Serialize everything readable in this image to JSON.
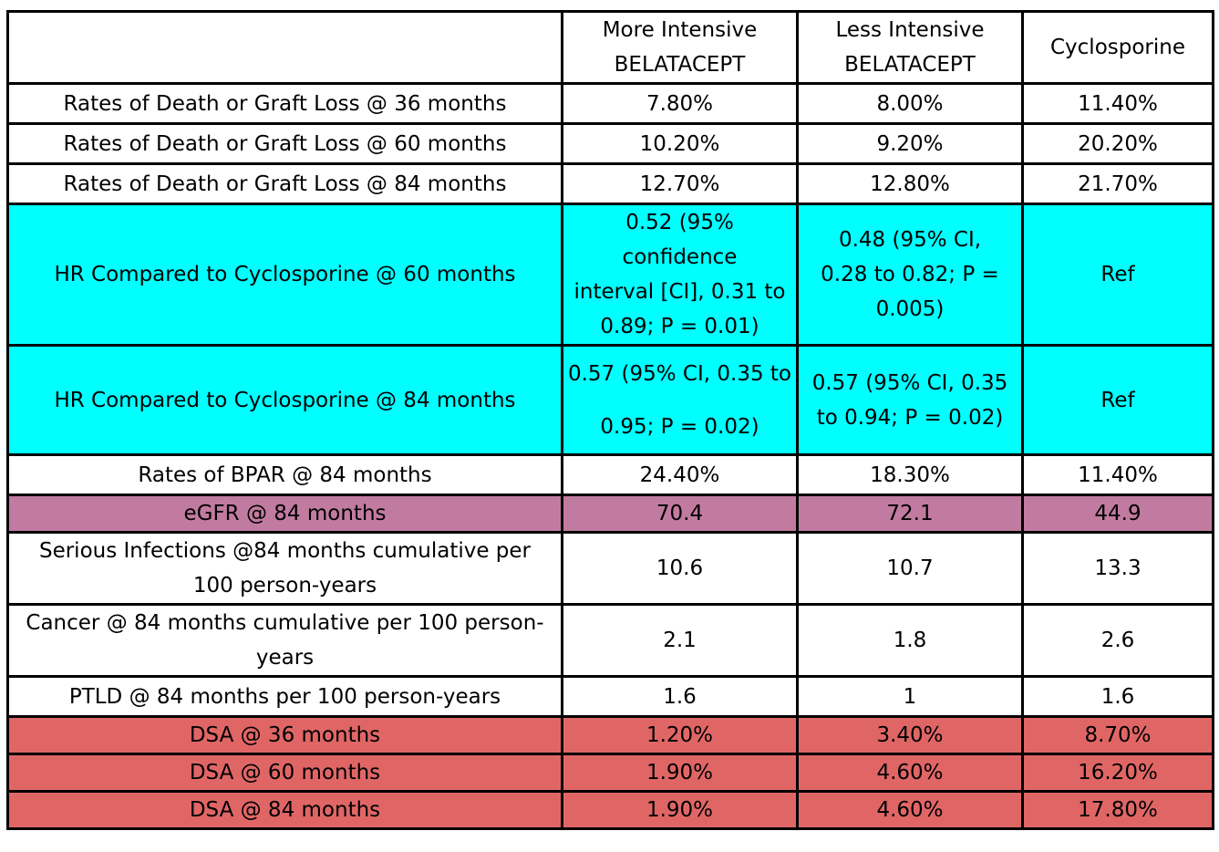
{
  "colors": {
    "white": "#ffffff",
    "cyan": "#00ffff",
    "mauve": "#c27ba0",
    "red": "#e06666",
    "border": "#000000"
  },
  "header": {
    "corner": "",
    "col1": [
      "More Intensive",
      "BELATACEPT"
    ],
    "col2": [
      "Less Intensive",
      "BELATACEPT"
    ],
    "col3": "Cyclosporine"
  },
  "rows": [
    {
      "label": "Rates of Death or Graft Loss @ 36 months",
      "more": "7.80%",
      "less": "8.00%",
      "cyclo": "11.40%",
      "color": "white"
    },
    {
      "label": "Rates of Death or Graft Loss @ 60 months",
      "more": "10.20%",
      "less": "9.20%",
      "cyclo": "20.20%",
      "color": "white"
    },
    {
      "label": "Rates of Death or Graft Loss @ 84 months",
      "more": "12.70%",
      "less": "12.80%",
      "cyclo": "21.70%",
      "color": "white"
    },
    {
      "label": "HR Compared to Cyclosporine @ 60 months",
      "more": [
        "0.52 (95%",
        "confidence",
        "interval [CI], 0.31 to",
        "0.89; P = 0.01)"
      ],
      "less": [
        "0.48 (95% CI,",
        "0.28 to 0.82; P =",
        "0.005)"
      ],
      "cyclo": "Ref",
      "color": "cyan"
    },
    {
      "label": "HR Compared to Cyclosporine @ 84 months",
      "more": [
        "0.57 (95% CI, 0.35 to",
        "0.95; P = 0.02)"
      ],
      "less": [
        "0.57 (95% CI, 0.35",
        "to 0.94; P = 0.02)"
      ],
      "cyclo": "Ref",
      "color": "cyan"
    },
    {
      "label": "Rates of BPAR @ 84 months",
      "more": "24.40%",
      "less": "18.30%",
      "cyclo": "11.40%",
      "color": "white"
    },
    {
      "label": "eGFR @ 84 months",
      "more": "70.4",
      "less": "72.1",
      "cyclo": "44.9",
      "color": "mauve"
    },
    {
      "label": [
        "Serious Infections @84 months cumulative per",
        "100 person-years"
      ],
      "more": "10.6",
      "less": "10.7",
      "cyclo": "13.3",
      "color": "white"
    },
    {
      "label": [
        "Cancer @ 84 months cumulative per 100 person-",
        "years"
      ],
      "more": "2.1",
      "less": "1.8",
      "cyclo": "2.6",
      "color": "white"
    },
    {
      "label": "PTLD @ 84 months per 100 person-years",
      "more": "1.6",
      "less": "1",
      "cyclo": "1.6",
      "color": "white"
    },
    {
      "label": "DSA @ 36 months",
      "more": "1.20%",
      "less": "3.40%",
      "cyclo": "8.70%",
      "color": "red"
    },
    {
      "label": "DSA @ 60 months",
      "more": "1.90%",
      "less": "4.60%",
      "cyclo": "16.20%",
      "color": "red"
    },
    {
      "label": "DSA @ 84 months",
      "more": "1.90%",
      "less": "4.60%",
      "cyclo": "17.80%",
      "color": "red"
    }
  ]
}
